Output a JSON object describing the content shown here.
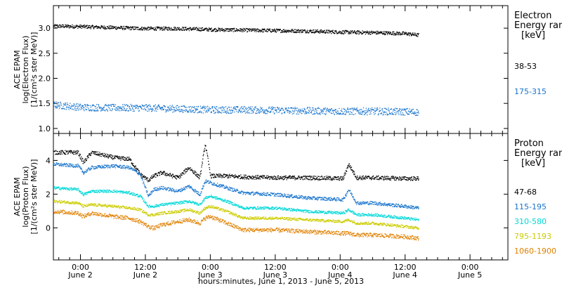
{
  "chart_data": [
    {
      "type": "scatter",
      "panel": "electron",
      "ylabel_lines": [
        "ACE EPAM",
        "log(Electron Flux)",
        "[1/(cm²s ster MeV)]"
      ],
      "ylim": [
        0.9,
        3.45
      ],
      "yticks": [
        1.0,
        1.5,
        2.0,
        2.5,
        3.0
      ],
      "ytick_labels": [
        "1.0",
        "1.5",
        "2.0",
        "2.5",
        "3.0"
      ],
      "legend_title_lines": [
        "Electron",
        "Energy ran",
        "[keV]"
      ],
      "series": [
        {
          "name": "38-53",
          "color": "#000000",
          "x": [
            -5,
            0,
            6,
            12,
            18,
            24,
            30,
            36,
            42,
            48,
            54,
            60,
            62.5
          ],
          "values": [
            3.05,
            3.04,
            3.02,
            3.0,
            3.0,
            2.98,
            2.97,
            2.96,
            2.95,
            2.93,
            2.92,
            2.9,
            2.87
          ],
          "scatter": 0.035
        },
        {
          "name": "175-315",
          "color": "#1874cd",
          "x": [
            -5,
            0,
            6,
            12,
            18,
            24,
            30,
            36,
            42,
            48,
            54,
            60,
            62.5
          ],
          "values": [
            1.48,
            1.43,
            1.42,
            1.42,
            1.4,
            1.38,
            1.38,
            1.37,
            1.36,
            1.35,
            1.35,
            1.34,
            1.33
          ],
          "scatter": 0.07
        }
      ]
    },
    {
      "type": "scatter",
      "panel": "proton",
      "ylabel_lines": [
        "ACE EPAM",
        "log(Proton Flux)",
        "[1/(cm²s ster MeV)]"
      ],
      "ylim": [
        -1.9,
        5.6
      ],
      "yticks": [
        0,
        2,
        4
      ],
      "ytick_labels": [
        "0",
        "2",
        "4"
      ],
      "legend_title_lines": [
        "Proton",
        "Energy ran",
        "[keV]"
      ],
      "series": [
        {
          "name": "47-68",
          "color": "#000000",
          "x": [
            -5,
            -0.5,
            0.5,
            2,
            6,
            9,
            11,
            12.5,
            13.5,
            15,
            18,
            20,
            22,
            23,
            24,
            27,
            30,
            36,
            42,
            48.5,
            49.5,
            51,
            54,
            60,
            62.5
          ],
          "values": [
            4.5,
            4.5,
            3.9,
            4.5,
            4.2,
            4.1,
            3.2,
            2.85,
            3.1,
            3.3,
            3.0,
            3.6,
            3.0,
            5.0,
            3.1,
            3.1,
            3.05,
            3.0,
            3.0,
            2.95,
            3.8,
            3.0,
            3.0,
            2.95,
            2.95
          ],
          "scatter": 0.12
        },
        {
          "name": "115-195",
          "color": "#1874cd",
          "x": [
            -5,
            -0.5,
            0.5,
            2,
            6,
            9,
            11,
            12.5,
            13.5,
            15,
            18,
            20,
            22,
            23,
            24,
            27,
            30,
            36,
            42,
            48.5,
            49.5,
            51,
            54,
            60,
            62.5
          ],
          "values": [
            3.8,
            3.7,
            3.3,
            3.6,
            3.7,
            3.6,
            3.2,
            1.9,
            2.3,
            2.4,
            2.2,
            2.5,
            2.0,
            2.8,
            2.7,
            2.4,
            2.1,
            2.0,
            1.8,
            1.7,
            2.3,
            1.5,
            1.5,
            1.3,
            1.2
          ],
          "scatter": 0.1
        },
        {
          "name": "310-580",
          "color": "#00d8d8",
          "x": [
            -5,
            -0.5,
            0.5,
            2,
            6,
            9,
            11,
            12.5,
            13.5,
            15,
            18,
            20,
            22,
            23,
            24,
            27,
            30,
            36,
            42,
            48.5,
            49.5,
            51,
            54,
            60,
            62.5
          ],
          "values": [
            2.4,
            2.3,
            2.0,
            2.2,
            2.2,
            2.1,
            1.9,
            1.3,
            1.3,
            1.4,
            1.5,
            1.6,
            1.4,
            1.8,
            1.9,
            1.6,
            1.2,
            1.2,
            1.0,
            0.9,
            1.1,
            0.8,
            0.8,
            0.6,
            0.5
          ],
          "scatter": 0.08
        },
        {
          "name": "795-1193",
          "color": "#cccc00",
          "x": [
            -5,
            -0.5,
            0.5,
            2,
            6,
            9,
            11,
            12.5,
            13.5,
            15,
            18,
            20,
            22,
            23,
            24,
            27,
            30,
            36,
            42,
            48.5,
            49.5,
            51,
            54,
            60,
            62.5
          ],
          "values": [
            1.6,
            1.5,
            1.3,
            1.4,
            1.3,
            1.2,
            1.1,
            0.8,
            0.8,
            0.9,
            1.0,
            1.1,
            0.9,
            1.2,
            1.3,
            1.0,
            0.6,
            0.6,
            0.5,
            0.4,
            0.5,
            0.3,
            0.3,
            0.1,
            0.0
          ],
          "scatter": 0.08
        },
        {
          "name": "1060-1900",
          "color": "#e08000",
          "x": [
            -5,
            -0.5,
            0.5,
            2,
            6,
            9,
            11,
            12.5,
            13.5,
            15,
            18,
            20,
            22,
            23,
            24,
            27,
            30,
            36,
            42,
            48.5,
            49.5,
            51,
            54,
            60,
            62.5
          ],
          "values": [
            1.0,
            0.9,
            0.7,
            0.9,
            0.7,
            0.6,
            0.4,
            0.1,
            0.0,
            0.2,
            0.4,
            0.5,
            0.3,
            0.6,
            0.7,
            0.3,
            -0.1,
            -0.1,
            -0.2,
            -0.3,
            -0.3,
            -0.4,
            -0.4,
            -0.5,
            -0.6
          ],
          "scatter": 0.12
        }
      ]
    }
  ],
  "x_axis": {
    "xlim": [
      -5,
      79
    ],
    "unit": "hours",
    "ticks": [
      {
        "x": 0,
        "time": "0:00",
        "day": "June 2"
      },
      {
        "x": 12,
        "time": "12:00",
        "day": "June 2"
      },
      {
        "x": 24,
        "time": "0:00",
        "day": "June 3"
      },
      {
        "x": 36,
        "time": "12:00",
        "day": "June 3"
      },
      {
        "x": 48,
        "time": "0:00",
        "day": "June 4"
      },
      {
        "x": 60,
        "time": "12:00",
        "day": "June 4"
      },
      {
        "x": 72,
        "time": "0:00",
        "day": "June 5"
      }
    ],
    "xlabel": "hours:minutes, June  1, 2013 - June  5, 2013"
  }
}
